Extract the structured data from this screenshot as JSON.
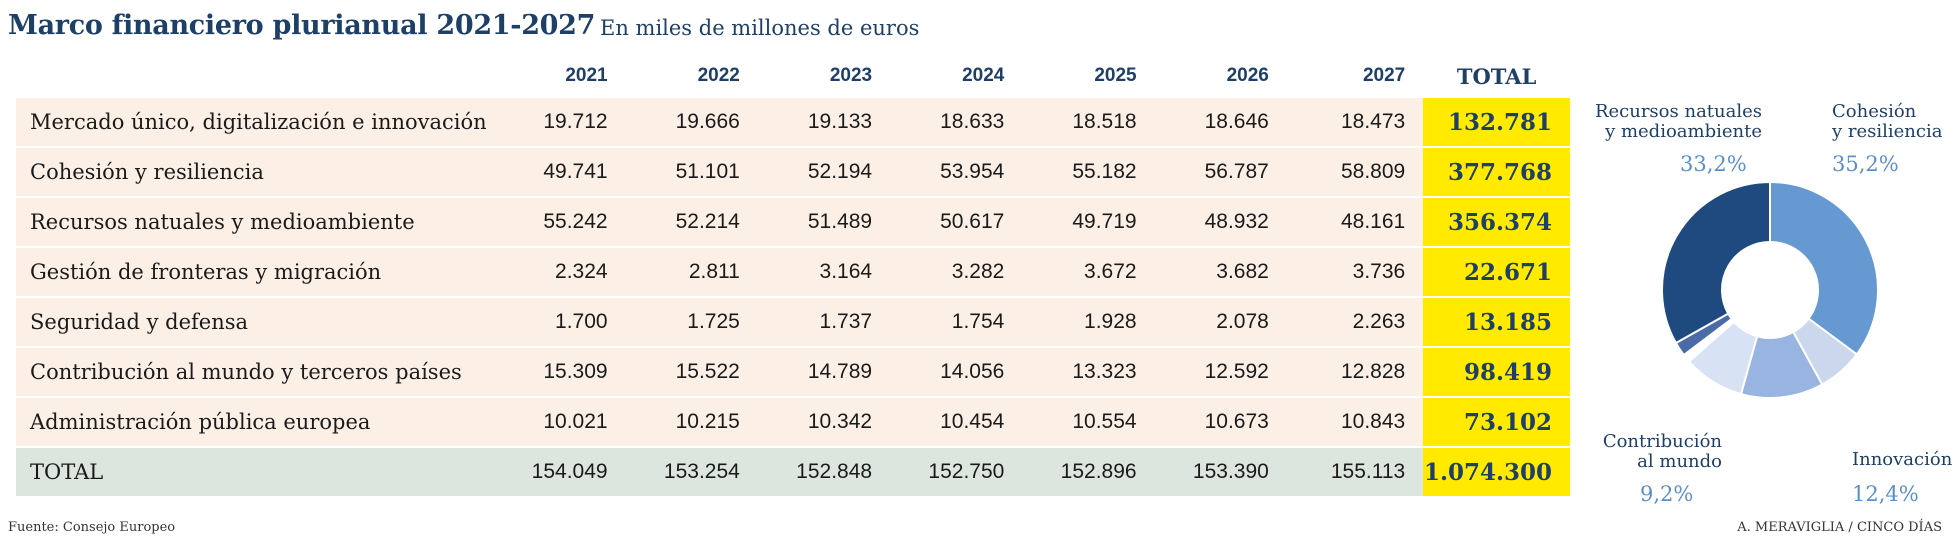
{
  "header": {
    "title": "Marco financiero plurianual 2021-2027",
    "subtitle": "En miles de millones de euros"
  },
  "table": {
    "columns": [
      "2021",
      "2022",
      "2023",
      "2024",
      "2025",
      "2026",
      "2027",
      "TOTAL"
    ],
    "rows": [
      {
        "label": "Mercado único, digitalización e innovación",
        "values": [
          "19.712",
          "19.666",
          "19.133",
          "18.633",
          "18.518",
          "18.646",
          "18.473"
        ],
        "total": "132.781"
      },
      {
        "label": "Cohesión y resiliencia",
        "values": [
          "49.741",
          "51.101",
          "52.194",
          "53.954",
          "55.182",
          "56.787",
          "58.809"
        ],
        "total": "377.768"
      },
      {
        "label": "Recursos natuales y medioambiente",
        "values": [
          "55.242",
          "52.214",
          "51.489",
          "50.617",
          "49.719",
          "48.932",
          "48.161"
        ],
        "total": "356.374"
      },
      {
        "label": "Gestión de fronteras y migración",
        "values": [
          "2.324",
          "2.811",
          "3.164",
          "3.282",
          "3.672",
          "3.682",
          "3.736"
        ],
        "total": "22.671"
      },
      {
        "label": "Seguridad y defensa",
        "values": [
          "1.700",
          "1.725",
          "1.737",
          "1.754",
          "1.928",
          "2.078",
          "2.263"
        ],
        "total": "13.185"
      },
      {
        "label": "Contribución al mundo y terceros países",
        "values": [
          "15.309",
          "15.522",
          "14.789",
          "14.056",
          "13.323",
          "12.592",
          "12.828"
        ],
        "total": "98.419"
      },
      {
        "label": "Administración pública europea",
        "values": [
          "10.021",
          "10.215",
          "10.342",
          "10.454",
          "10.554",
          "10.673",
          "10.843"
        ],
        "total": "73.102"
      }
    ],
    "grand_total": {
      "label": "TOTAL",
      "values": [
        "154.049",
        "153.254",
        "152.848",
        "152.750",
        "152.896",
        "153.390",
        "155.113"
      ],
      "total": "1.074.300"
    }
  },
  "chart_data": {
    "type": "pie",
    "donut": true,
    "slices": [
      {
        "name": "Cohesión y resiliencia",
        "label_lines": [
          "Cohesión",
          "y resiliencia"
        ],
        "pct_label": "35,2%",
        "value": 377.768,
        "color": "#6699d1"
      },
      {
        "name": "Administración pública europea",
        "value": 73.102,
        "color": "#cbd7ec"
      },
      {
        "name": "Innovación",
        "label_lines": [
          "Innovación"
        ],
        "pct_label": "12,4%",
        "value": 132.781,
        "color": "#98b4e0"
      },
      {
        "name": "Contribución al mundo",
        "label_lines": [
          "Contribución",
          "al mundo"
        ],
        "pct_label": "9,2%",
        "value": 98.419,
        "color": "#d7e2f4"
      },
      {
        "name": "Seguridad y defensa",
        "value": 13.185,
        "color": "#ffffff"
      },
      {
        "name": "Gestión de fronteras y migración",
        "value": 22.671,
        "color": "#4a6aa8"
      },
      {
        "name": "Recursos natuales y medioambiente",
        "label_lines": [
          "Recursos natuales",
          "y medioambiente"
        ],
        "pct_label": "33,2%",
        "value": 356.374,
        "color": "#1f4a80"
      }
    ]
  },
  "footer": {
    "source": "Fuente: Consejo Europeo",
    "credit": "A. MERAVIGLIA / CINCO DÍAS"
  }
}
